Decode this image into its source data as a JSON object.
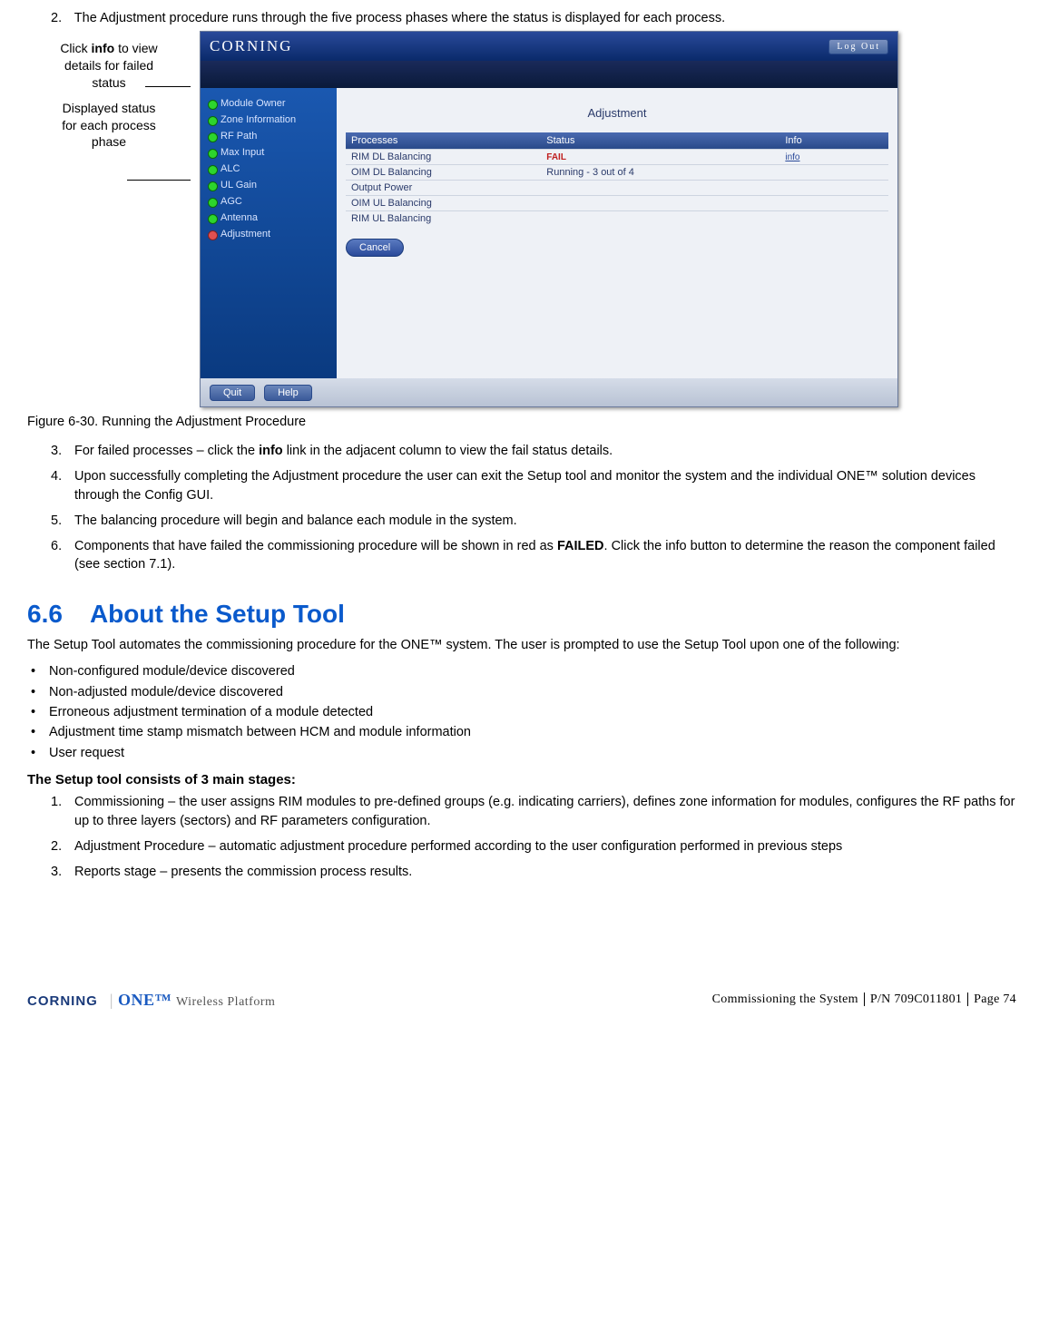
{
  "steps_top": {
    "n2": "2.",
    "t2": "The Adjustment procedure runs through the five process phases where the status is displayed for each process."
  },
  "annotations": {
    "a1_l1": "Click ",
    "a1_bold": "info",
    "a1_l2": " to view",
    "a1_l3": "details for failed",
    "a1_l4": "status",
    "a2_l1": "Displayed status",
    "a2_l2": "for each process",
    "a2_l3": "phase"
  },
  "window": {
    "title": "CORNING",
    "logout": "Log Out",
    "panel_title": "Adjustment",
    "sidebar": [
      {
        "label": "Module Owner",
        "cls": ""
      },
      {
        "label": "Zone Information",
        "cls": ""
      },
      {
        "label": "RF Path",
        "cls": ""
      },
      {
        "label": "Max Input",
        "cls": ""
      },
      {
        "label": "ALC",
        "cls": ""
      },
      {
        "label": "UL Gain",
        "cls": ""
      },
      {
        "label": "AGC",
        "cls": ""
      },
      {
        "label": "Antenna",
        "cls": ""
      },
      {
        "label": "Adjustment",
        "cls": "red"
      }
    ],
    "table": {
      "h1": "Processes",
      "h2": "Status",
      "h3": "Info",
      "rows": [
        {
          "p": "RIM DL Balancing",
          "s": "FAIL",
          "cls": "fail",
          "info": "info"
        },
        {
          "p": "OIM DL Balancing",
          "s": "Running - 3 out of 4",
          "cls": "",
          "info": ""
        },
        {
          "p": "Output Power",
          "s": "",
          "cls": "",
          "info": ""
        },
        {
          "p": "OIM UL Balancing",
          "s": "",
          "cls": "",
          "info": ""
        },
        {
          "p": "RIM UL Balancing",
          "s": "",
          "cls": "",
          "info": ""
        }
      ]
    },
    "cancel": "Cancel",
    "quit": "Quit",
    "help": "Help"
  },
  "fig_caption": "Figure 6-30. Running the Adjustment Procedure",
  "steps": [
    {
      "n": "3.",
      "t_pre": "For failed processes – click the ",
      "t_b": "info",
      "t_post": " link in the adjacent column to view the fail status details."
    },
    {
      "n": "4.",
      "t_pre": "Upon successfully completing the Adjustment procedure the user can exit the Setup tool and monitor the system and the individual ONE™ solution devices through the Config GUI.",
      "t_b": "",
      "t_post": ""
    },
    {
      "n": "5.",
      "t_pre": "The balancing procedure will begin and balance each module in the system.",
      "t_b": "",
      "t_post": ""
    },
    {
      "n": "6.",
      "t_pre": "Components that have failed the commissioning procedure will be shown in red as ",
      "t_b": "FAILED",
      "t_post": ". Click the info button to determine the reason the component failed (see section 7.1)."
    }
  ],
  "section": {
    "num": "6.6",
    "title": "About the Setup Tool"
  },
  "para1": "The Setup Tool automates the commissioning procedure for the ONE™ system. The user is prompted to use the Setup Tool upon one of the following:",
  "bullets": [
    "Non-configured module/device discovered",
    "Non-adjusted module/device discovered",
    "Erroneous adjustment termination of a module detected",
    "Adjustment time stamp mismatch between HCM and module information",
    "User request"
  ],
  "subhead": "The Setup tool consists of 3 main stages:",
  "stages": [
    {
      "n": "1.",
      "t": "Commissioning – the user assigns RIM modules to pre-defined groups (e.g. indicating carriers), defines zone information for modules, configures the RF paths for up to three layers (sectors) and RF parameters configuration."
    },
    {
      "n": "2.",
      "t": "Adjustment Procedure – automatic adjustment procedure performed according to the user configuration performed in previous steps"
    },
    {
      "n": "3.",
      "t": "Reports stage – presents the commission process results."
    }
  ],
  "footer": {
    "corning": "CORNING",
    "one": "ONE™",
    "wp": "Wireless Platform",
    "chapter": "Commissioning the System",
    "pn": "P/N 709C011801",
    "page": "Page 74"
  }
}
